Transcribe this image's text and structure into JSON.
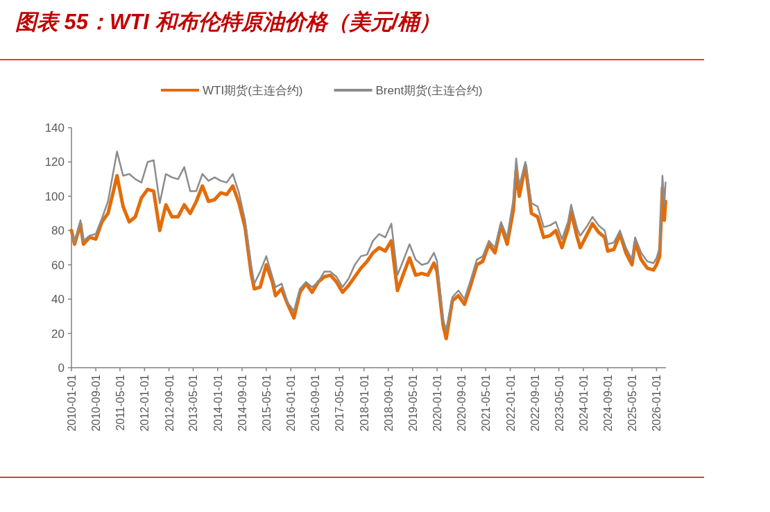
{
  "chart_data": {
    "type": "line",
    "title": "图表 55：WTI 和布伦特原油价格（美元/桶）",
    "x": [
      "2010-01",
      "2010-02",
      "2010-04",
      "2010-05",
      "2010-07",
      "2010-09",
      "2010-11",
      "2011-01",
      "2011-03",
      "2011-04",
      "2011-06",
      "2011-08",
      "2011-10",
      "2011-12",
      "2012-02",
      "2012-04",
      "2012-06",
      "2012-08",
      "2012-10",
      "2012-12",
      "2013-02",
      "2013-04",
      "2013-06",
      "2013-08",
      "2013-10",
      "2013-12",
      "2014-02",
      "2014-04",
      "2014-06",
      "2014-08",
      "2014-10",
      "2014-12",
      "2015-01",
      "2015-03",
      "2015-05",
      "2015-07",
      "2015-08",
      "2015-10",
      "2015-12",
      "2016-02",
      "2016-04",
      "2016-06",
      "2016-08",
      "2016-10",
      "2016-12",
      "2017-02",
      "2017-04",
      "2017-06",
      "2017-08",
      "2017-10",
      "2017-12",
      "2018-02",
      "2018-04",
      "2018-06",
      "2018-08",
      "2018-10",
      "2018-12",
      "2019-02",
      "2019-04",
      "2019-06",
      "2019-08",
      "2019-10",
      "2019-12",
      "2020-01",
      "2020-03",
      "2020-04",
      "2020-06",
      "2020-08",
      "2020-10",
      "2020-12",
      "2021-02",
      "2021-04",
      "2021-06",
      "2021-08",
      "2021-10",
      "2021-12",
      "2022-02",
      "2022-03",
      "2022-04",
      "2022-06",
      "2022-08",
      "2022-10",
      "2022-12",
      "2023-02",
      "2023-04",
      "2023-06",
      "2023-08",
      "2023-09",
      "2023-11",
      "2023-12",
      "2024-02",
      "2024-04",
      "2024-06",
      "2024-08",
      "2024-09",
      "2024-11",
      "2025-01",
      "2025-03",
      "2025-05",
      "2025-06",
      "2025-08",
      "2025-10",
      "2025-12",
      "2026-01",
      "2026-02",
      "2026-03",
      "2026-03-20",
      "2026-04"
    ],
    "series": [
      {
        "name": "WTI期货(主连合约)",
        "color": "#e36c09",
        "values": [
          80,
          72,
          84,
          72,
          76,
          75,
          85,
          90,
          104,
          112,
          94,
          85,
          88,
          99,
          104,
          103,
          80,
          95,
          88,
          88,
          95,
          90,
          97,
          106,
          97,
          98,
          102,
          101,
          106,
          96,
          82,
          55,
          46,
          47,
          60,
          50,
          42,
          46,
          37,
          29,
          44,
          49,
          44,
          50,
          53,
          54,
          50,
          44,
          48,
          53,
          58,
          62,
          67,
          70,
          68,
          74,
          45,
          55,
          64,
          54,
          55,
          54,
          61,
          56,
          25,
          17,
          39,
          42,
          37,
          48,
          60,
          62,
          72,
          67,
          83,
          72,
          92,
          115,
          100,
          118,
          90,
          88,
          76,
          77,
          80,
          70,
          81,
          91,
          76,
          70,
          77,
          84,
          79,
          76,
          68,
          69,
          78,
          67,
          60,
          73,
          63,
          58,
          57,
          60,
          65,
          105,
          86,
          97
        ]
      },
      {
        "name": "Brent期货(主连合约)",
        "color": "#8c8c8c",
        "values": [
          78,
          73,
          86,
          74,
          77,
          78,
          87,
          97,
          116,
          126,
          112,
          113,
          110,
          108,
          120,
          121,
          96,
          113,
          111,
          110,
          117,
          103,
          103,
          113,
          109,
          111,
          109,
          108,
          113,
          102,
          86,
          60,
          49,
          56,
          65,
          53,
          47,
          49,
          38,
          33,
          46,
          50,
          47,
          50,
          56,
          56,
          53,
          47,
          52,
          60,
          65,
          66,
          74,
          78,
          76,
          84,
          54,
          63,
          72,
          63,
          60,
          61,
          67,
          62,
          28,
          22,
          41,
          45,
          40,
          51,
          63,
          65,
          74,
          70,
          85,
          76,
          98,
          122,
          106,
          120,
          96,
          94,
          82,
          83,
          85,
          75,
          85,
          95,
          81,
          77,
          82,
          88,
          83,
          80,
          72,
          73,
          80,
          70,
          63,
          76,
          67,
          62,
          61,
          64,
          70,
          112,
          95,
          108
        ]
      }
    ],
    "xlim": [
      "2010-01-01",
      "2026-04-05"
    ],
    "xticks": [
      "2010-01-01",
      "2010-09-01",
      "2011-05-01",
      "2012-01-01",
      "2012-09-01",
      "2013-05-01",
      "2014-01-01",
      "2014-09-01",
      "2015-05-01",
      "2016-01-01",
      "2016-09-01",
      "2017-05-01",
      "2018-01-01",
      "2018-09-01",
      "2019-05-01",
      "2020-01-01",
      "2020-09-01",
      "2021-05-01",
      "2022-01-01",
      "2022-09-01",
      "2023-05-01",
      "2024-01-01",
      "2024-09-01",
      "2025-05-01",
      "2026-01-01"
    ],
    "ylim": [
      0,
      140
    ],
    "yticks": [
      0,
      20,
      40,
      60,
      80,
      100,
      120,
      140
    ],
    "legend": "top"
  }
}
